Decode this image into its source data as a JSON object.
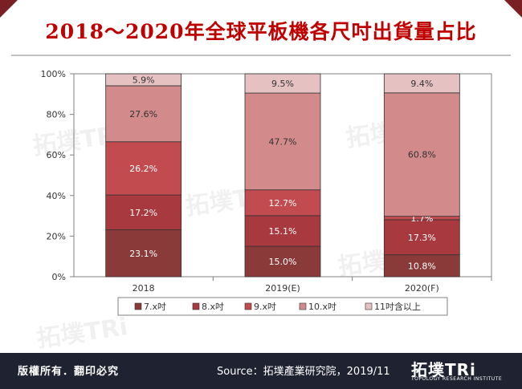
{
  "title": "2018～2020年全球平板機各尺吋出貨量占比",
  "footer": {
    "copyright": "版權所有．翻印必究",
    "source": "Source：拓墣產業研究院，2019/11",
    "logo_text": "拓墣TRi",
    "logo_subtitle": "TOPOLOGY RESEARCH INSTITUTE"
  },
  "watermark_text": "拓墣TRi",
  "chart_data": {
    "type": "bar",
    "stacked": true,
    "percent": true,
    "categories": [
      "2018",
      "2019(E)",
      "2020(F)"
    ],
    "series": [
      {
        "name": "7.x吋",
        "color": "#8b3a3a",
        "values": [
          23.1,
          15.0,
          10.8
        ],
        "labels": [
          "23.1%",
          "15.0%",
          "10.8%"
        ]
      },
      {
        "name": "8.x吋",
        "color": "#a8393e",
        "values": [
          17.2,
          15.1,
          17.3
        ],
        "labels": [
          "17.2%",
          "15.1%",
          "17.3%"
        ]
      },
      {
        "name": "9.x吋",
        "color": "#c24b4f",
        "values": [
          26.2,
          12.7,
          1.7
        ],
        "labels": [
          "26.2%",
          "12.7%",
          "1.7%"
        ]
      },
      {
        "name": "10.x吋",
        "color": "#d28a8b",
        "values": [
          27.6,
          47.7,
          60.8
        ],
        "labels": [
          "27.6%",
          "47.7%",
          "60.8%"
        ]
      },
      {
        "name": "11吋含以上",
        "color": "#e6c1c2",
        "values": [
          5.9,
          9.5,
          9.4
        ],
        "labels": [
          "5.9%",
          "9.5%",
          "9.4%"
        ]
      }
    ],
    "yticks": [
      "0%",
      "20%",
      "40%",
      "60%",
      "80%",
      "100%"
    ],
    "ylim": [
      0,
      100
    ],
    "legend_position": "bottom"
  }
}
